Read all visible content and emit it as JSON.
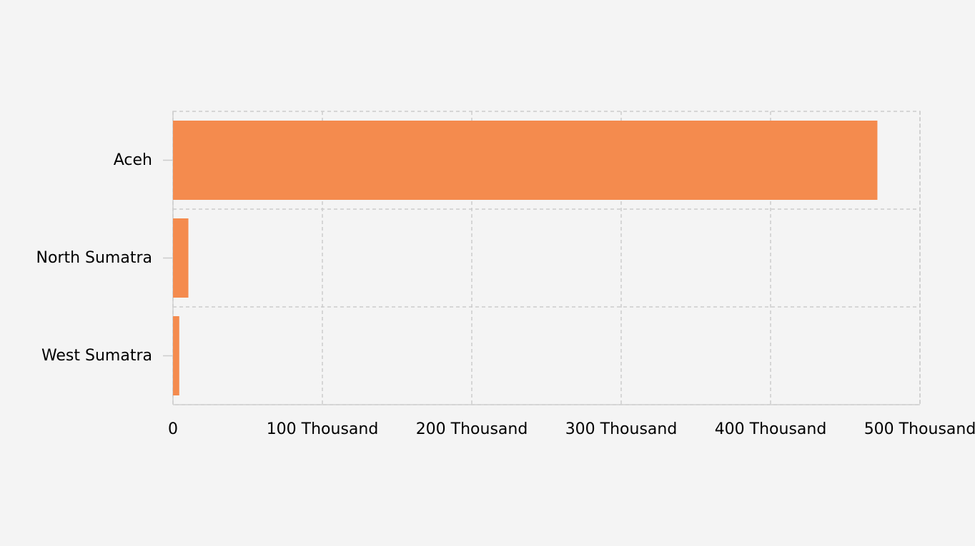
{
  "chart_data": {
    "type": "bar",
    "orientation": "horizontal",
    "categories": [
      "Aceh",
      "North Sumatra",
      "West Sumatra"
    ],
    "values": [
      471500,
      10300,
      4200
    ],
    "xlim": [
      0,
      500000
    ],
    "xticks": [
      0,
      100000,
      200000,
      300000,
      400000,
      500000
    ],
    "xtick_labels": [
      "0",
      "100 Thousand",
      "200 Thousand",
      "300 Thousand",
      "400 Thousand",
      "500 Thousand"
    ],
    "grid": true,
    "title": "",
    "xlabel": "",
    "ylabel": "",
    "colors": {
      "bar": "#f48b4e",
      "grid": "#cccccc",
      "background": "#f4f4f4"
    }
  }
}
